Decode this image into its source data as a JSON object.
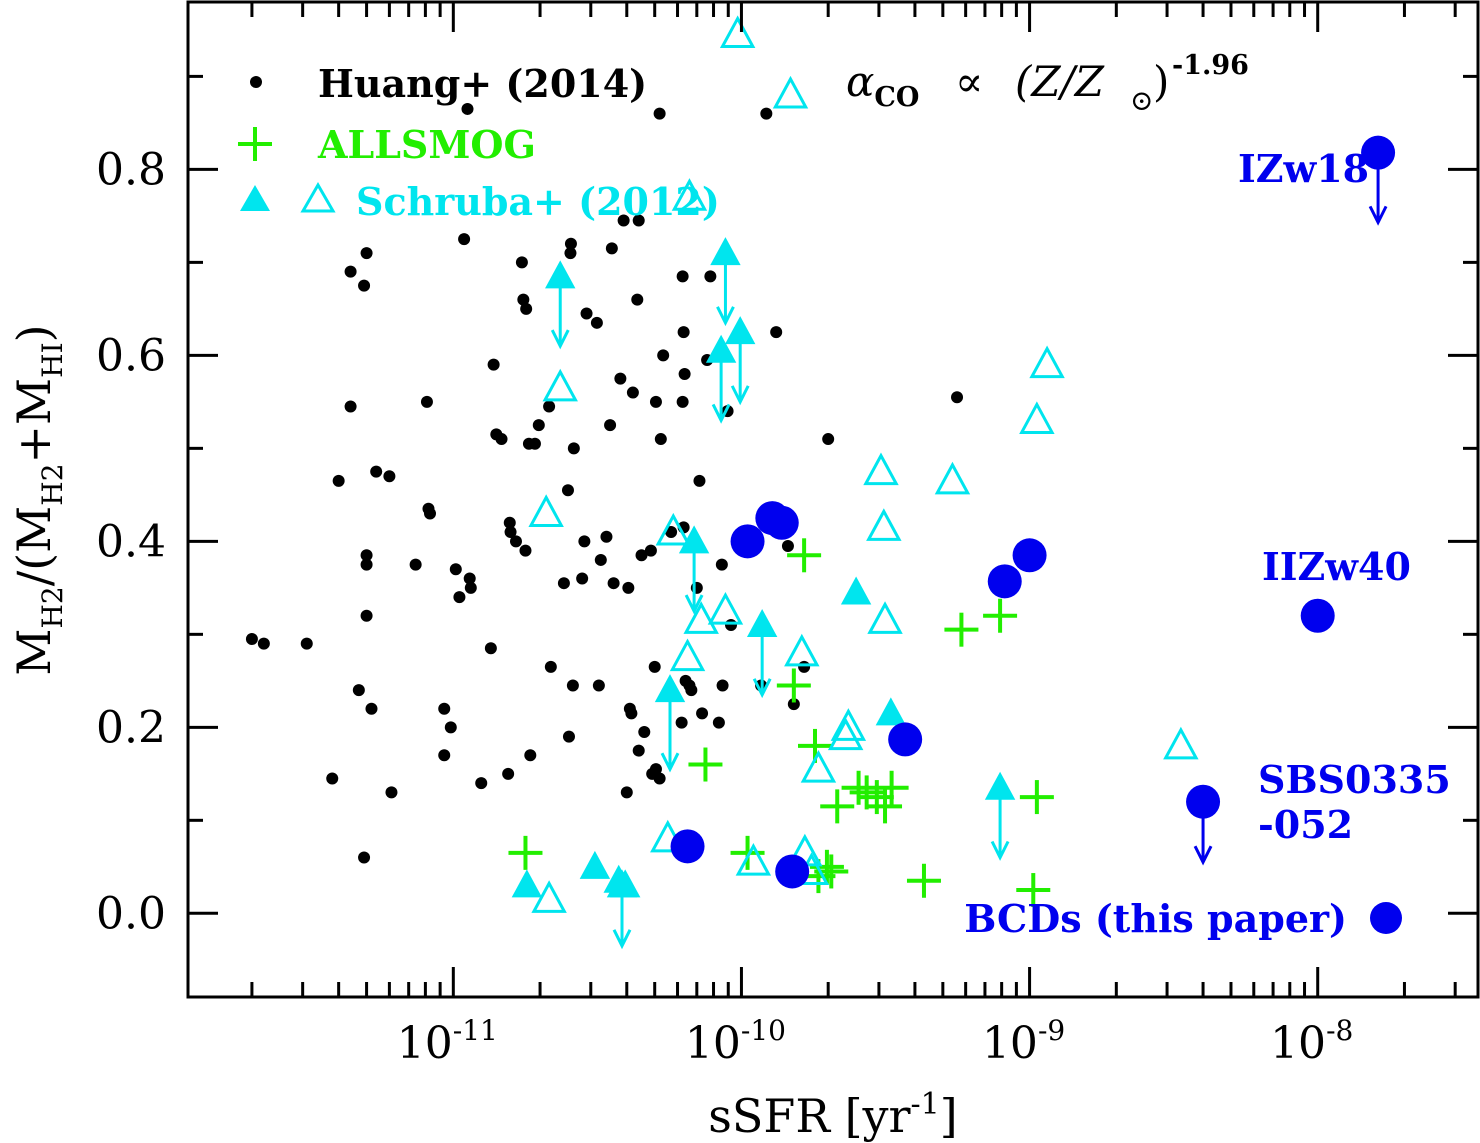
{
  "chart_data": {
    "type": "scatter",
    "xscale": "log",
    "xlim": [
      1.2e-12,
      3.6e-08
    ],
    "ylim": [
      -0.09,
      0.98
    ],
    "xlabel": {
      "main": "sSFR [yr",
      "sup": "-1",
      "close": "]"
    },
    "ylabel": {
      "m1": "M",
      "s1": "H2",
      "mid": "/(M",
      "s2": "H2",
      "plus": "+M",
      "s3": "HI",
      "close": ")"
    },
    "annotation": {
      "alpha": "α",
      "sub": "CO",
      "prop": "∝",
      "paren": "(Z/Z",
      "odot": "⊙",
      "close": ")",
      "exp": "-1.96"
    },
    "xticks": [
      {
        "value": 1e-11,
        "base": "10",
        "exp": "-11"
      },
      {
        "value": 1e-10,
        "base": "10",
        "exp": "-10"
      },
      {
        "value": 1e-09,
        "base": "10",
        "exp": "-9"
      },
      {
        "value": 1e-08,
        "base": "10",
        "exp": "-8"
      }
    ],
    "yticks": [
      {
        "value": 0.0,
        "label": "0.0"
      },
      {
        "value": 0.2,
        "label": "0.2"
      },
      {
        "value": 0.4,
        "label": "0.4"
      },
      {
        "value": 0.6,
        "label": "0.6"
      },
      {
        "value": 0.8,
        "label": "0.8"
      }
    ],
    "legend": [
      {
        "label": "Huang+ (2014)",
        "color": "#000000",
        "marker": "dot"
      },
      {
        "label": "ALLSMOG",
        "color": "#22ee00",
        "marker": "plus"
      },
      {
        "label": "Schruba+ (2012)",
        "color": "#00e5ee",
        "marker": "triangles"
      },
      {
        "label": "BCDs (this paper)",
        "color": "#0000ee",
        "marker": "circle"
      }
    ],
    "series": [
      {
        "name": "Huang+ (2014)",
        "color": "#000000",
        "points": [
          [
            2e-12,
            0.295
          ],
          [
            2.2e-12,
            0.29
          ],
          [
            3.1e-12,
            0.29
          ],
          [
            3.8e-12,
            0.145
          ],
          [
            4e-12,
            0.465
          ],
          [
            4.4e-12,
            0.69
          ],
          [
            4.4e-12,
            0.545
          ],
          [
            4.7e-12,
            0.24
          ],
          [
            4.9e-12,
            0.06
          ],
          [
            4.9e-12,
            0.675
          ],
          [
            5e-12,
            0.71
          ],
          [
            5e-12,
            0.385
          ],
          [
            5e-12,
            0.375
          ],
          [
            5e-12,
            0.32
          ],
          [
            5.2e-12,
            0.22
          ],
          [
            5.4e-12,
            0.475
          ],
          [
            6e-12,
            0.47
          ],
          [
            6.1e-12,
            0.13
          ],
          [
            7.4e-12,
            0.375
          ],
          [
            8.1e-12,
            0.55
          ],
          [
            8.2e-12,
            0.435
          ],
          [
            8.3e-12,
            0.43
          ],
          [
            9.3e-12,
            0.22
          ],
          [
            9.3e-12,
            0.17
          ],
          [
            9.8e-12,
            0.2
          ],
          [
            1.02e-11,
            0.37
          ],
          [
            1.05e-11,
            0.34
          ],
          [
            1.09e-11,
            0.725
          ],
          [
            1.12e-11,
            0.865
          ],
          [
            1.14e-11,
            0.36
          ],
          [
            1.15e-11,
            0.35
          ],
          [
            1.25e-11,
            0.14
          ],
          [
            1.35e-11,
            0.285
          ],
          [
            1.38e-11,
            0.59
          ],
          [
            1.41e-11,
            0.515
          ],
          [
            1.47e-11,
            0.51
          ],
          [
            1.55e-11,
            0.15
          ],
          [
            1.57e-11,
            0.42
          ],
          [
            1.58e-11,
            0.41
          ],
          [
            1.65e-11,
            0.4
          ],
          [
            1.73e-11,
            0.7
          ],
          [
            1.75e-11,
            0.66
          ],
          [
            1.78e-11,
            0.39
          ],
          [
            1.79e-11,
            0.65
          ],
          [
            1.83e-11,
            0.505
          ],
          [
            1.85e-11,
            0.17
          ],
          [
            1.92e-11,
            0.505
          ],
          [
            1.98e-11,
            0.525
          ],
          [
            2.15e-11,
            0.545
          ],
          [
            2.18e-11,
            0.265
          ],
          [
            2.42e-11,
            0.355
          ],
          [
            2.5e-11,
            0.455
          ],
          [
            2.52e-11,
            0.19
          ],
          [
            2.55e-11,
            0.71
          ],
          [
            2.56e-11,
            0.72
          ],
          [
            2.6e-11,
            0.245
          ],
          [
            2.62e-11,
            0.5
          ],
          [
            2.8e-11,
            0.36
          ],
          [
            2.85e-11,
            0.4
          ],
          [
            2.9e-11,
            0.645
          ],
          [
            3.15e-11,
            0.635
          ],
          [
            3.2e-11,
            0.245
          ],
          [
            3.25e-11,
            0.38
          ],
          [
            3.4e-11,
            0.405
          ],
          [
            3.5e-11,
            0.525
          ],
          [
            3.55e-11,
            0.715
          ],
          [
            3.6e-11,
            0.355
          ],
          [
            3.8e-11,
            0.575
          ],
          [
            3.9e-11,
            0.745
          ],
          [
            4e-11,
            0.13
          ],
          [
            4.05e-11,
            0.35
          ],
          [
            4.1e-11,
            0.22
          ],
          [
            4.15e-11,
            0.215
          ],
          [
            4.2e-11,
            0.56
          ],
          [
            4.35e-11,
            0.66
          ],
          [
            4.4e-11,
            0.745
          ],
          [
            4.4e-11,
            0.175
          ],
          [
            4.5e-11,
            0.385
          ],
          [
            4.6e-11,
            0.195
          ],
          [
            4.85e-11,
            0.39
          ],
          [
            4.9e-11,
            0.15
          ],
          [
            5e-11,
            0.265
          ],
          [
            5.05e-11,
            0.55
          ],
          [
            5.05e-11,
            0.155
          ],
          [
            5.2e-11,
            0.145
          ],
          [
            5.2e-11,
            0.86
          ],
          [
            5.25e-11,
            0.51
          ],
          [
            5.35e-11,
            0.6
          ],
          [
            5.7e-11,
            0.41
          ],
          [
            6.2e-11,
            0.205
          ],
          [
            6.25e-11,
            0.685
          ],
          [
            6.25e-11,
            0.55
          ],
          [
            6.3e-11,
            0.625
          ],
          [
            6.3e-11,
            0.415
          ],
          [
            6.35e-11,
            0.58
          ],
          [
            6.4e-11,
            0.25
          ],
          [
            6.6e-11,
            0.245
          ],
          [
            6.7e-11,
            0.24
          ],
          [
            7e-11,
            0.35
          ],
          [
            7.15e-11,
            0.465
          ],
          [
            7.3e-11,
            0.215
          ],
          [
            7.6e-11,
            0.595
          ],
          [
            7.8e-11,
            0.685
          ],
          [
            8.35e-11,
            0.205
          ],
          [
            8.55e-11,
            0.375
          ],
          [
            8.6e-11,
            0.245
          ],
          [
            8.95e-11,
            0.54
          ],
          [
            9.2e-11,
            0.31
          ],
          [
            1.17e-10,
            0.245
          ],
          [
            1.22e-10,
            0.86
          ],
          [
            1.32e-10,
            0.625
          ],
          [
            1.45e-10,
            0.395
          ],
          [
            1.52e-10,
            0.225
          ],
          [
            1.65e-10,
            0.265
          ],
          [
            2e-10,
            0.51
          ],
          [
            5.6e-10,
            0.555
          ]
        ]
      },
      {
        "name": "ALLSMOG",
        "color": "#22ee00",
        "points": [
          [
            1.78e-11,
            0.065
          ],
          [
            7.5e-11,
            0.16
          ],
          [
            1.05e-10,
            0.065
          ],
          [
            1.52e-10,
            0.245
          ],
          [
            1.65e-10,
            0.385
          ],
          [
            1.8e-10,
            0.18
          ],
          [
            1.85e-10,
            0.04
          ],
          [
            1.98e-10,
            0.05
          ],
          [
            2.05e-10,
            0.045
          ],
          [
            2.15e-10,
            0.115
          ],
          [
            2.55e-10,
            0.135
          ],
          [
            2.72e-10,
            0.13
          ],
          [
            2.95e-10,
            0.125
          ],
          [
            3.15e-10,
            0.115
          ],
          [
            3.32e-10,
            0.135
          ],
          [
            4.3e-10,
            0.035
          ],
          [
            5.8e-10,
            0.305
          ],
          [
            7.9e-10,
            0.32
          ],
          [
            1.03e-09,
            0.025
          ],
          [
            1.06e-09,
            0.125
          ]
        ]
      },
      {
        "name": "Schruba+ (2012) detections",
        "color": "#00e5ee",
        "points": [
          [
            1.8e-11,
            0.03
          ],
          [
            3.1e-11,
            0.05
          ],
          [
            3.75e-11,
            0.035
          ],
          [
            3.95e-11,
            0.03
          ],
          [
            2.5e-10,
            0.345
          ],
          [
            3.3e-10,
            0.215
          ]
        ]
      },
      {
        "name": "Schruba+ (2012) upper limits",
        "color": "#00e5ee",
        "points": [
          [
            2.15e-11,
            0.015
          ],
          [
            2.1e-11,
            0.43
          ],
          [
            2.35e-11,
            0.565
          ],
          [
            5.55e-11,
            0.08
          ],
          [
            5.8e-11,
            0.41
          ],
          [
            6.5e-11,
            0.275
          ],
          [
            6.6e-11,
            0.77
          ],
          [
            7.25e-11,
            0.315
          ],
          [
            8.8e-11,
            0.325
          ],
          [
            9.7e-11,
            0.945
          ],
          [
            1.1e-10,
            0.055
          ],
          [
            1.48e-10,
            0.88
          ],
          [
            1.62e-10,
            0.28
          ],
          [
            1.66e-10,
            0.065
          ],
          [
            1.75e-10,
            0.045
          ],
          [
            1.85e-10,
            0.155
          ],
          [
            2.3e-10,
            0.19
          ],
          [
            2.35e-10,
            0.2
          ],
          [
            3.05e-10,
            0.475
          ],
          [
            3.12e-10,
            0.415
          ],
          [
            3.15e-10,
            0.315
          ],
          [
            5.4e-10,
            0.465
          ],
          [
            1.06e-09,
            0.53
          ],
          [
            1.15e-09,
            0.59
          ],
          [
            3.35e-09,
            0.18
          ]
        ]
      },
      {
        "name": "Schruba+ (2012) arrows",
        "color": "#00e5ee",
        "points": [
          [
            2.35e-11,
            0.685,
            -0.075
          ],
          [
            3.85e-11,
            0.03,
            -0.065
          ],
          [
            5.65e-11,
            0.24,
            -0.085
          ],
          [
            6.85e-11,
            0.4,
            -0.075
          ],
          [
            8.5e-11,
            0.605,
            -0.075
          ],
          [
            8.8e-11,
            0.71,
            -0.075
          ],
          [
            9.9e-11,
            0.625,
            -0.075
          ],
          [
            1.18e-10,
            0.31,
            -0.075
          ],
          [
            7.9e-10,
            0.135,
            -0.075
          ]
        ]
      },
      {
        "name": "BCDs (this paper)",
        "color": "#0000ee",
        "points": [
          [
            6.5e-11,
            0.072
          ],
          [
            1.05e-10,
            0.4
          ],
          [
            1.28e-10,
            0.425
          ],
          [
            1.38e-10,
            0.42
          ],
          [
            1.5e-10,
            0.045
          ],
          [
            3.7e-10,
            0.187
          ],
          [
            8.2e-10,
            0.357
          ],
          [
            1e-09,
            0.385
          ],
          [
            1e-08,
            0.32
          ],
          [
            4e-09,
            0.12
          ],
          [
            1.62e-08,
            0.818
          ]
        ]
      },
      {
        "name": "BCD upper limits",
        "color": "#0000ee",
        "points": [
          [
            1.62e-08,
            0.818,
            -0.075
          ],
          [
            4e-09,
            0.12,
            -0.065
          ]
        ]
      }
    ],
    "labels": [
      {
        "text": "IZw18",
        "color": "#0000ee",
        "x": 1.1e-08,
        "y": 0.82
      },
      {
        "text": "IIZw40",
        "color": "#0000ee",
        "x": 1e-08,
        "y": 0.375
      },
      {
        "text": "SBS0335",
        "color": "#0000ee",
        "x": 8.5e-09,
        "y": 0.147
      },
      {
        "text": "-052",
        "color": "#0000ee",
        "x": 8.5e-09,
        "y": 0.1
      }
    ]
  }
}
